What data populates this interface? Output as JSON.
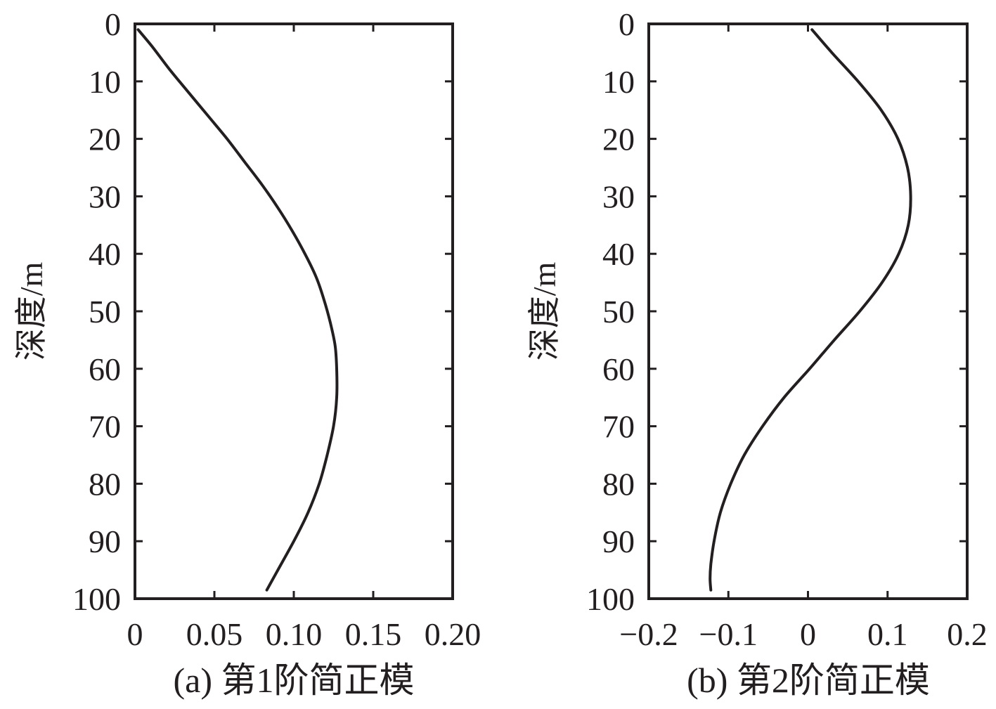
{
  "chart_data": [
    {
      "type": "line",
      "caption": "(a) 第1阶简正模",
      "ylabel": "深度/m",
      "xlim": [
        0,
        0.2
      ],
      "ylim": [
        0,
        100
      ],
      "y_inverted": true,
      "xticks": [
        0,
        0.05,
        0.1,
        0.15,
        0.2
      ],
      "xtick_labels": [
        "0",
        "0.05",
        "0.10",
        "0.15",
        "0.20"
      ],
      "yticks": [
        0,
        10,
        20,
        30,
        40,
        50,
        60,
        70,
        80,
        90,
        100
      ],
      "ytick_labels": [
        "0",
        "10",
        "20",
        "30",
        "40",
        "50",
        "60",
        "70",
        "80",
        "90",
        "100"
      ],
      "series": [
        {
          "x": [
            0.002,
            0.011,
            0.022,
            0.034,
            0.046,
            0.058,
            0.069,
            0.08,
            0.09,
            0.099,
            0.107,
            0.114,
            0.119,
            0.123,
            0.126,
            0.127,
            0.127,
            0.125,
            0.121,
            0.116,
            0.109,
            0.1,
            0.09,
            0.083
          ],
          "y": [
            1,
            4,
            8,
            12,
            16,
            20,
            24,
            28,
            32,
            36,
            40,
            44,
            48,
            52,
            56,
            60,
            65,
            70,
            75,
            80,
            85,
            90,
            95,
            98.5
          ]
        }
      ]
    },
    {
      "type": "line",
      "caption": "(b) 第2阶简正模",
      "ylabel": "深度/m",
      "xlim": [
        -0.2,
        0.2
      ],
      "ylim": [
        0,
        100
      ],
      "y_inverted": true,
      "xticks": [
        -0.2,
        -0.1,
        0,
        0.1,
        0.2
      ],
      "xtick_labels": [
        "−0.2",
        "−0.1",
        "0",
        "0.1",
        "0.2"
      ],
      "yticks": [
        0,
        10,
        20,
        30,
        40,
        50,
        60,
        70,
        80,
        90,
        100
      ],
      "ytick_labels": [
        "0",
        "10",
        "20",
        "30",
        "40",
        "50",
        "60",
        "70",
        "80",
        "90",
        "100"
      ],
      "series": [
        {
          "x": [
            0.005,
            0.03,
            0.063,
            0.092,
            0.113,
            0.125,
            0.129,
            0.126,
            0.114,
            0.093,
            0.065,
            0.033,
            0.002,
            -0.03,
            -0.057,
            -0.08,
            -0.097,
            -0.11,
            -0.118,
            -0.122,
            -0.123,
            -0.122
          ],
          "y": [
            1,
            5,
            10,
            15,
            20,
            25,
            30,
            35,
            40,
            45,
            50,
            55,
            60,
            65,
            70,
            75,
            80,
            85,
            90,
            94,
            96.5,
            98.5
          ]
        }
      ]
    }
  ]
}
